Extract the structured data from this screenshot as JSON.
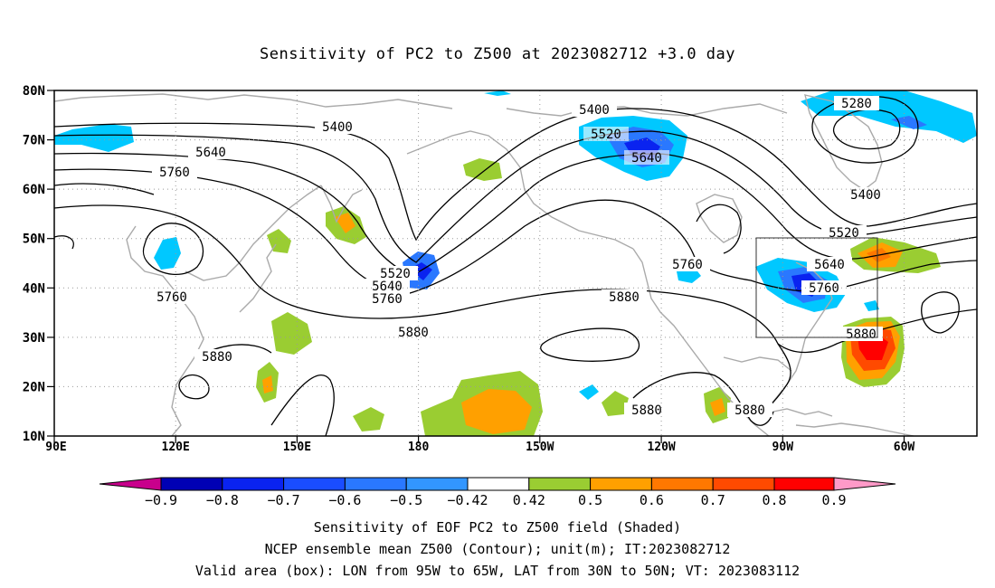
{
  "title": "Sensitivity of PC2 to Z500 at 2023082712 +3.0 day",
  "axes": {
    "lat_labels": [
      "80N",
      "70N",
      "60N",
      "50N",
      "40N",
      "30N",
      "20N",
      "10N"
    ],
    "lon_labels": [
      "90E",
      "120E",
      "150E",
      "180",
      "150W",
      "120W",
      "90W",
      "60W"
    ]
  },
  "contour_labels": [
    "5400",
    "5400",
    "5280",
    "5520",
    "5640",
    "5640",
    "5760",
    "5400",
    "5520",
    "5640",
    "5760",
    "5520",
    "5640",
    "5760",
    "5760",
    "5880",
    "5760",
    "5880",
    "5880",
    "5880",
    "5880"
  ],
  "colorbar": {
    "labels": [
      "−0.9",
      "−0.8",
      "−0.7",
      "−0.6",
      "−0.5",
      "−0.42",
      "0.42",
      "0.5",
      "0.6",
      "0.7",
      "0.8",
      "0.9"
    ],
    "colors": [
      "#c8008c",
      "#0000b4",
      "#0a23f0",
      "#1a4dff",
      "#2a78ff",
      "#3296ff",
      "#00c8ff",
      "#ffffff",
      "#9acd32",
      "#ffa000",
      "#ff7800",
      "#ff4a00",
      "#ff0000",
      "#ff9ac8"
    ]
  },
  "captions": {
    "line1": "Sensitivity of EOF PC2 to Z500 field (Shaded)",
    "line2": "NCEP ensemble mean Z500 (Contour); unit(m); IT:2023082712",
    "line3": "Valid area (box): LON from 95W to 65W, LAT from 30N to 50N; VT: 2023083112"
  }
}
